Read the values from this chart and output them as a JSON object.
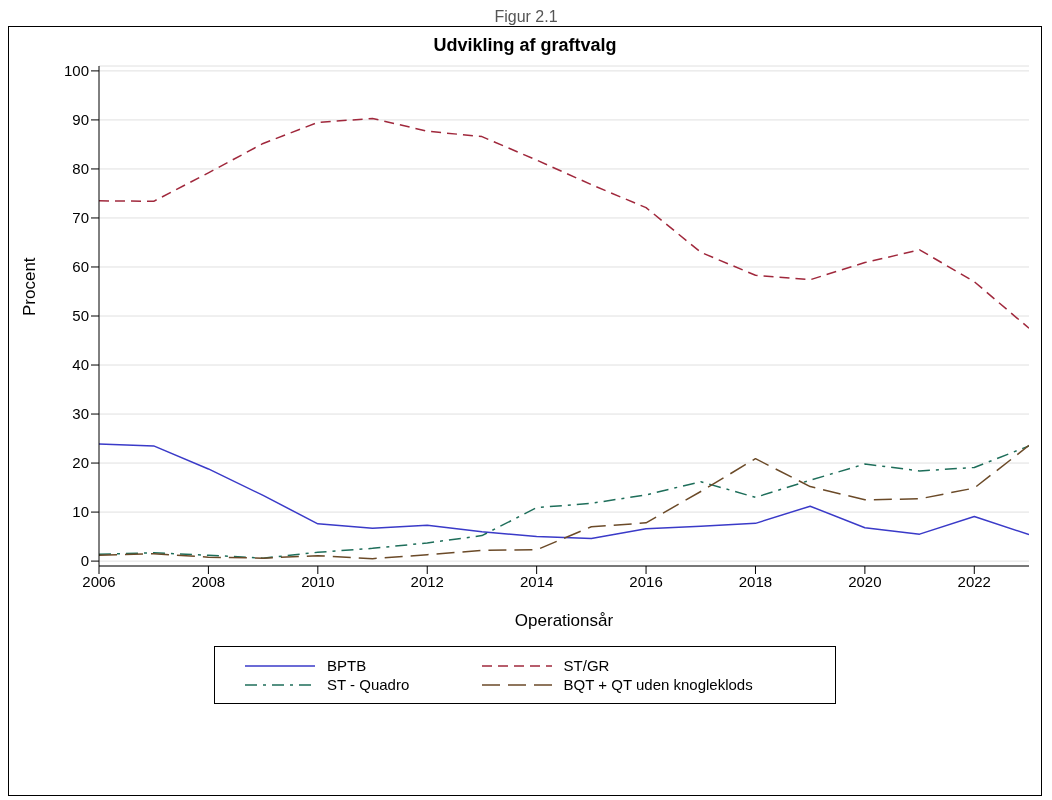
{
  "chart_data": {
    "type": "line",
    "title": "Udvikling af graftvalg",
    "xlabel": "Operationsår",
    "ylabel": "Procent",
    "annotations": [
      "Figur 2.1"
    ],
    "x": [
      2006,
      2007,
      2008,
      2009,
      2010,
      2011,
      2012,
      2013,
      2014,
      2015,
      2016,
      2017,
      2018,
      2019,
      2020,
      2021,
      2022,
      2023
    ],
    "series": [
      {
        "name": "BPTB",
        "color": "#3a3ac8",
        "line_style": "solid",
        "values": [
          23.9,
          23.5,
          18.8,
          13.4,
          7.6,
          6.7,
          7.3,
          6.0,
          5.0,
          4.6,
          6.6,
          7.1,
          7.7,
          11.2,
          6.8,
          5.5,
          9.1,
          5.4
        ]
      },
      {
        "name": "ST/GR",
        "color": "#a0283c",
        "line_style": "dashed",
        "values": [
          73.5,
          73.4,
          79.2,
          85.2,
          89.5,
          90.3,
          87.7,
          86.6,
          81.8,
          76.8,
          72.1,
          63.0,
          58.3,
          57.4,
          60.9,
          63.5,
          57.0,
          47.5
        ]
      },
      {
        "name": "ST - Quadro",
        "color": "#1e6e5a",
        "line_style": "dashdot",
        "values": [
          1.4,
          1.7,
          1.2,
          0.6,
          1.8,
          2.6,
          3.7,
          5.2,
          10.9,
          11.8,
          13.5,
          16.2,
          13.0,
          16.5,
          19.8,
          18.4,
          19.1,
          23.5
        ]
      },
      {
        "name": "BQT + QT uden knogleklods",
        "color": "#6b4a28",
        "line_style": "longdash",
        "values": [
          1.2,
          1.5,
          0.8,
          0.6,
          1.1,
          0.5,
          1.3,
          2.2,
          2.3,
          7.0,
          7.8,
          14.2,
          20.9,
          15.2,
          12.5,
          12.7,
          14.9,
          23.6
        ]
      }
    ],
    "xlim": [
      2006,
      2023
    ],
    "xticks": [
      2006,
      2008,
      2010,
      2012,
      2014,
      2016,
      2018,
      2020,
      2022
    ],
    "ylim": [
      -1,
      101
    ],
    "yticks": [
      0,
      10,
      20,
      30,
      40,
      50,
      60,
      70,
      80,
      90,
      100
    ],
    "grid": "y",
    "legend": "bottom",
    "marker": "none"
  }
}
